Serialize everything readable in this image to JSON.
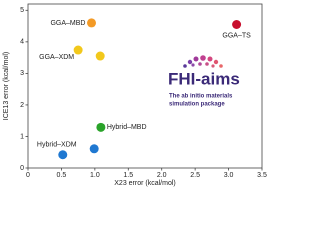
{
  "chart_data": {
    "type": "scatter",
    "xlabel": "X23 error (kcal/mol)",
    "ylabel": "ICE13 error (kcal/mol)",
    "xlim": [
      0,
      3.5
    ],
    "ylim": [
      0,
      5.2
    ],
    "xticks": [
      0,
      {
        "value": 0.5,
        "label": "0.5"
      },
      {
        "value": 1,
        "label": "1.0"
      },
      {
        "value": 1.5,
        "label": "1.5"
      },
      {
        "value": 2,
        "label": "2.0"
      },
      {
        "value": 2.5,
        "label": "2.5"
      },
      {
        "value": 3,
        "label": "3.0"
      },
      {
        "value": 3.5,
        "label": "3.5"
      }
    ],
    "yticks": [
      0,
      1,
      2,
      3,
      4,
      5
    ],
    "series": [
      {
        "name": "GGA–MBD",
        "color": "#f39a26",
        "x": [
          0.95
        ],
        "values": [
          4.6
        ]
      },
      {
        "name": "GGA–TS",
        "color": "#c8102e",
        "x": [
          3.12
        ],
        "values": [
          4.55
        ]
      },
      {
        "name": "GGA–XDM",
        "color": "#f2c81b",
        "x": [
          0.75,
          1.08
        ],
        "values": [
          3.74,
          3.55
        ]
      },
      {
        "name": "Hybrid–MBD",
        "color": "#2aa32a",
        "x": [
          1.09
        ],
        "values": [
          1.29
        ]
      },
      {
        "name": "Hybrid–XDM",
        "color": "#1f78d1",
        "x": [
          0.52,
          0.99
        ],
        "values": [
          0.42,
          0.61
        ]
      }
    ]
  },
  "logo": {
    "title": "FHI-aims",
    "tagline": [
      "The ab initio materials",
      "simulation package"
    ]
  }
}
